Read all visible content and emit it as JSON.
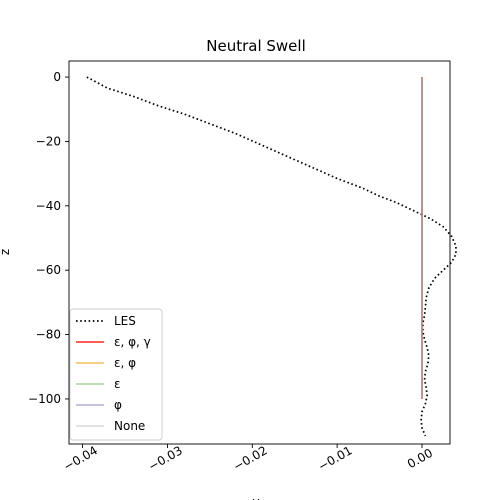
{
  "chart_data": {
    "type": "line",
    "title": "Neutral Swell",
    "xlabel": "y",
    "ylabel": "z",
    "xlim": [
      -0.0416,
      0.0033
    ],
    "ylim": [
      -114,
      5
    ],
    "xticks": [
      -0.04,
      -0.03,
      -0.02,
      -0.01,
      0.0
    ],
    "xtick_labels": [
      "−0.04",
      "−0.03",
      "−0.02",
      "−0.01",
      "0.00"
    ],
    "yticks": [
      0,
      -20,
      -40,
      -60,
      -80,
      -100
    ],
    "ytick_labels": [
      "0",
      "−20",
      "−40",
      "−60",
      "−80",
      "−100"
    ],
    "grid": false,
    "legend_position": "lower-left",
    "series": [
      {
        "name": "LES",
        "color": "#000000",
        "style": "dotted",
        "points": [
          [
            -0.0395,
            0.0
          ],
          [
            -0.037,
            -3.5
          ],
          [
            -0.034,
            -6.0
          ],
          [
            -0.031,
            -9.0
          ],
          [
            -0.028,
            -11.5
          ],
          [
            -0.025,
            -14.5
          ],
          [
            -0.022,
            -17.5
          ],
          [
            -0.019,
            -21.0
          ],
          [
            -0.016,
            -24.5
          ],
          [
            -0.013,
            -28.0
          ],
          [
            -0.01,
            -31.5
          ],
          [
            -0.007,
            -34.5
          ],
          [
            -0.005,
            -37.0
          ],
          [
            -0.003,
            -39.0
          ],
          [
            -0.001,
            -41.5
          ],
          [
            0.001,
            -44.0
          ],
          [
            0.0025,
            -46.5
          ],
          [
            0.0035,
            -49.5
          ],
          [
            0.004,
            -52.5
          ],
          [
            0.004,
            -55.0
          ],
          [
            0.0035,
            -57.5
          ],
          [
            0.0025,
            -60.0
          ],
          [
            0.0015,
            -62.5
          ],
          [
            0.0008,
            -65.5
          ],
          [
            0.0005,
            -68.5
          ],
          [
            0.0004,
            -71.5
          ],
          [
            0.0003,
            -74.0
          ],
          [
            0.0001,
            -76.5
          ],
          [
            0.0001,
            -79.0
          ],
          [
            0.0003,
            -81.5
          ],
          [
            0.0006,
            -84.0
          ],
          [
            0.0008,
            -86.5
          ],
          [
            0.0007,
            -89.0
          ],
          [
            0.0004,
            -91.5
          ],
          [
            0.0003,
            -94.0
          ],
          [
            0.0005,
            -96.5
          ],
          [
            0.0006,
            -99.0
          ],
          [
            0.0004,
            -101.5
          ],
          [
            0.0,
            -104.0
          ],
          [
            -0.0001,
            -106.5
          ],
          [
            0.0,
            -109.0
          ],
          [
            0.0004,
            -111.5
          ]
        ]
      },
      {
        "name": "ε, φ, γ",
        "color": "#ff2a1a",
        "style": "solid",
        "points": [
          [
            0.0,
            0.0
          ],
          [
            0.0,
            -100.0
          ]
        ]
      },
      {
        "name": "ε, φ",
        "color": "#f5c15a",
        "style": "solid",
        "points": [
          [
            0.0,
            0.0
          ],
          [
            0.0,
            -100.0
          ]
        ]
      },
      {
        "name": "ε",
        "color": "#a9d4a1",
        "style": "solid",
        "points": [
          [
            0.0,
            0.0
          ],
          [
            0.0,
            -100.0
          ]
        ]
      },
      {
        "name": "φ",
        "color": "#b6aed6",
        "style": "solid",
        "points": [
          [
            0.0,
            0.0
          ],
          [
            0.0,
            -100.0
          ]
        ]
      },
      {
        "name": "None",
        "color": "#d9d9d9",
        "style": "solid",
        "points": [
          [
            0.0,
            0.0
          ],
          [
            0.0,
            -100.0
          ]
        ]
      }
    ],
    "overlay_line_color": "#ab9e9e"
  }
}
